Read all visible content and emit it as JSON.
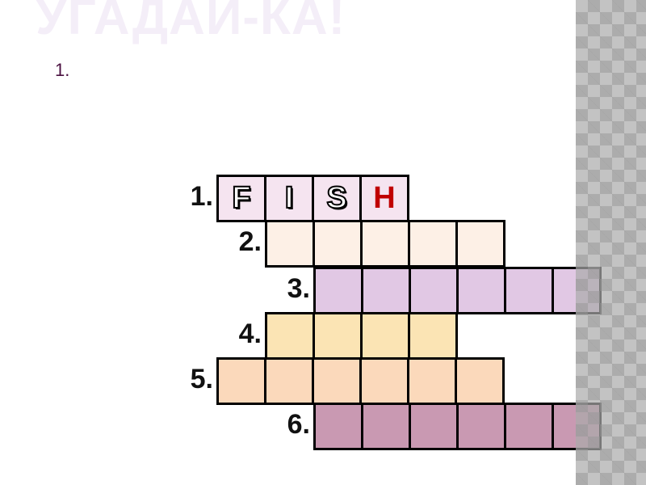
{
  "slide": {
    "title": "УГАДАЙ-КА!",
    "question_number": "1."
  },
  "crossword": {
    "rows": [
      {
        "label": "1.",
        "cells": 4,
        "color": "#f5e4f0",
        "letters": [
          "F",
          "I",
          "S",
          "H"
        ]
      },
      {
        "label": "2.",
        "cells": 5,
        "color": "#fdf0e6",
        "letters": []
      },
      {
        "label": "3.",
        "cells": 6,
        "color": "#e1c8e4",
        "letters": []
      },
      {
        "label": "4.",
        "cells": 4,
        "color": "#fbe4b4",
        "letters": []
      },
      {
        "label": "5.",
        "cells": 6,
        "color": "#fbd9bb",
        "letters": []
      },
      {
        "label": "6.",
        "cells": 6,
        "color": "#c999b2",
        "letters": []
      }
    ],
    "letter_colors": [
      "#000000",
      "#000000",
      "#000000",
      "#c00000"
    ]
  }
}
